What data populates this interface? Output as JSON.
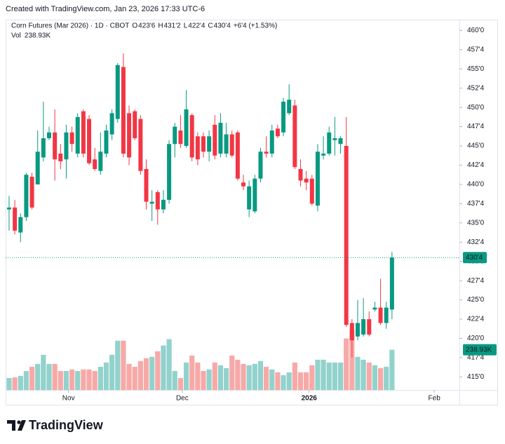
{
  "chart_data": {
    "type": "candlestick",
    "credit": "Created with TradingView.com, Jan 23, 2026 17:33 UTC-6",
    "title": "Corn Futures (Mar 2026) · 1D · CBOT",
    "ohlc_labels": [
      {
        "label": "O",
        "value": "423'6"
      },
      {
        "label": "H",
        "value": "431'2"
      },
      {
        "label": "L",
        "value": "422'4"
      },
      {
        "label": "C",
        "value": "430'4"
      }
    ],
    "change": "+6'4 (+1.53%)",
    "last_price_label": "430'4",
    "brand": "TradingView",
    "up_color": "#089981",
    "down_color": "#f23645",
    "volume_up_color": "#92d2cc",
    "volume_down_color": "#f7a9a7",
    "xlim": [
      -0.61,
      78.8
    ],
    "xticks": [
      {
        "value": 10.4,
        "label": "Nov"
      },
      {
        "value": 30.3,
        "label": "Dec"
      },
      {
        "value": 52.5,
        "label": "2026"
      },
      {
        "value": 74.4,
        "label": "Feb"
      }
    ],
    "ylim": [
      413.3,
      461.4
    ],
    "yticks": [
      {
        "value": 415,
        "label": "415'0"
      },
      {
        "value": 417.5,
        "label": "417'4"
      },
      {
        "value": 420,
        "label": "420'0"
      },
      {
        "value": 422.5,
        "label": "422'4"
      },
      {
        "value": 425,
        "label": "425'0"
      },
      {
        "value": 427.5,
        "label": "427'4"
      },
      {
        "value": 430,
        "label": "430'0"
      },
      {
        "value": 432.5,
        "label": "432'4"
      },
      {
        "value": 435,
        "label": "435'0"
      },
      {
        "value": 437.5,
        "label": "437'4"
      },
      {
        "value": 440,
        "label": "440'0"
      },
      {
        "value": 442.5,
        "label": "442'4"
      },
      {
        "value": 445,
        "label": "445'0"
      },
      {
        "value": 447.5,
        "label": "447'4"
      },
      {
        "value": 450,
        "label": "450'0"
      },
      {
        "value": 452.5,
        "label": "452'4"
      },
      {
        "value": 455,
        "label": "455'0"
      },
      {
        "value": 457.5,
        "label": "457'4"
      },
      {
        "value": 460,
        "label": "460'0"
      }
    ],
    "open": [
      436.75,
      437,
      433.75,
      435.75,
      441,
      440,
      443.5,
      446,
      446.75,
      444,
      443.25,
      446.75,
      444,
      449.5,
      448.5,
      443.25,
      441.75,
      444,
      446.5,
      448.5,
      455.25,
      449.25,
      449.5,
      448.5,
      442,
      437.5,
      439,
      436.75,
      438,
      445.25,
      447,
      445,
      449,
      446.25,
      446.25,
      444.25,
      447.75,
      444,
      444,
      446.5,
      446.75,
      440.25,
      436.75,
      436.5,
      440.75,
      444.25,
      444,
      447.25,
      446.75,
      449.25,
      450.25,
      442,
      440.75,
      440.75,
      437.25,
      443.75,
      444,
      445.75,
      445.25,
      445,
      422,
      420.25,
      420.5,
      422.5,
      423.75,
      424,
      422,
      423.75
    ],
    "high": [
      438.5,
      438,
      436.25,
      441.5,
      441.5,
      447,
      450.75,
      447.5,
      449.75,
      445.25,
      447.75,
      447.5,
      449.25,
      449.75,
      449,
      444.75,
      446.75,
      447.75,
      449.75,
      455.75,
      457,
      450.25,
      449.75,
      449,
      443.25,
      439.25,
      439.25,
      439.25,
      445.75,
      448,
      449,
      452.25,
      449.25,
      446.75,
      446.75,
      447,
      449,
      449.25,
      448,
      447,
      447,
      441.25,
      440.5,
      441.25,
      444.75,
      446.25,
      447.75,
      447.75,
      451.25,
      453,
      451,
      443.25,
      441.75,
      441.25,
      445.25,
      446.25,
      447.5,
      448.75,
      446.25,
      448.75,
      422.5,
      425,
      425.25,
      423.5,
      424.75,
      427.75,
      424.75,
      431.25
    ],
    "low": [
      434,
      433.5,
      432.5,
      435.25,
      436.75,
      440,
      443,
      445.75,
      440.5,
      442,
      440.75,
      444.25,
      443.5,
      443.5,
      442.5,
      441.75,
      441.25,
      443.5,
      445.75,
      448,
      443.5,
      442.5,
      445.75,
      441.25,
      436.75,
      435.25,
      434.75,
      436.25,
      437.5,
      443.5,
      444.75,
      444.75,
      443,
      442.5,
      443.5,
      443,
      443.25,
      443.5,
      443.5,
      443.5,
      440.5,
      439.25,
      435.75,
      436.25,
      440.25,
      443.5,
      443.5,
      446,
      446.25,
      449,
      442,
      439.75,
      439.25,
      437.25,
      436.5,
      443.25,
      443.75,
      443.75,
      444,
      421.5,
      417.5,
      419.75,
      420.25,
      420.25,
      423.5,
      421.75,
      421.25,
      422.5
    ],
    "close": [
      437,
      434,
      435.75,
      441.25,
      437,
      444.25,
      446,
      446.75,
      443.25,
      443,
      446.75,
      445.25,
      448.75,
      444,
      442.75,
      442,
      444.25,
      447,
      449.25,
      455.5,
      444,
      443.5,
      446,
      441.75,
      437.75,
      437.75,
      436.75,
      438,
      445.25,
      447.5,
      445.25,
      449.75,
      443.5,
      443.25,
      444.25,
      446.25,
      443.75,
      448,
      446.5,
      443.75,
      440.75,
      439.75,
      439.75,
      440.75,
      444.25,
      444,
      447,
      446.25,
      450.75,
      451,
      442.25,
      440.5,
      440.25,
      437.5,
      444.25,
      444,
      446.75,
      446,
      446,
      421.75,
      419.75,
      422,
      422.5,
      420.5,
      424,
      422,
      424,
      430.5
    ],
    "volume": {
      "name": "Vol",
      "values": [
        71,
        75,
        84,
        113,
        138,
        155,
        209,
        155,
        155,
        113,
        113,
        122,
        113,
        122,
        122,
        113,
        138,
        163,
        209,
        293,
        293,
        155,
        138,
        172,
        189,
        197,
        230,
        264,
        302,
        113,
        71,
        163,
        205,
        163,
        113,
        122,
        163,
        147,
        130,
        205,
        180,
        155,
        147,
        155,
        172,
        138,
        122,
        105,
        88,
        105,
        163,
        105,
        105,
        147,
        180,
        180,
        163,
        163,
        163,
        306,
        356,
        197,
        180,
        163,
        147,
        130,
        138,
        238.93
      ],
      "last_label": "238.93K"
    },
    "y2lim": [
      0,
      2200
    ]
  }
}
